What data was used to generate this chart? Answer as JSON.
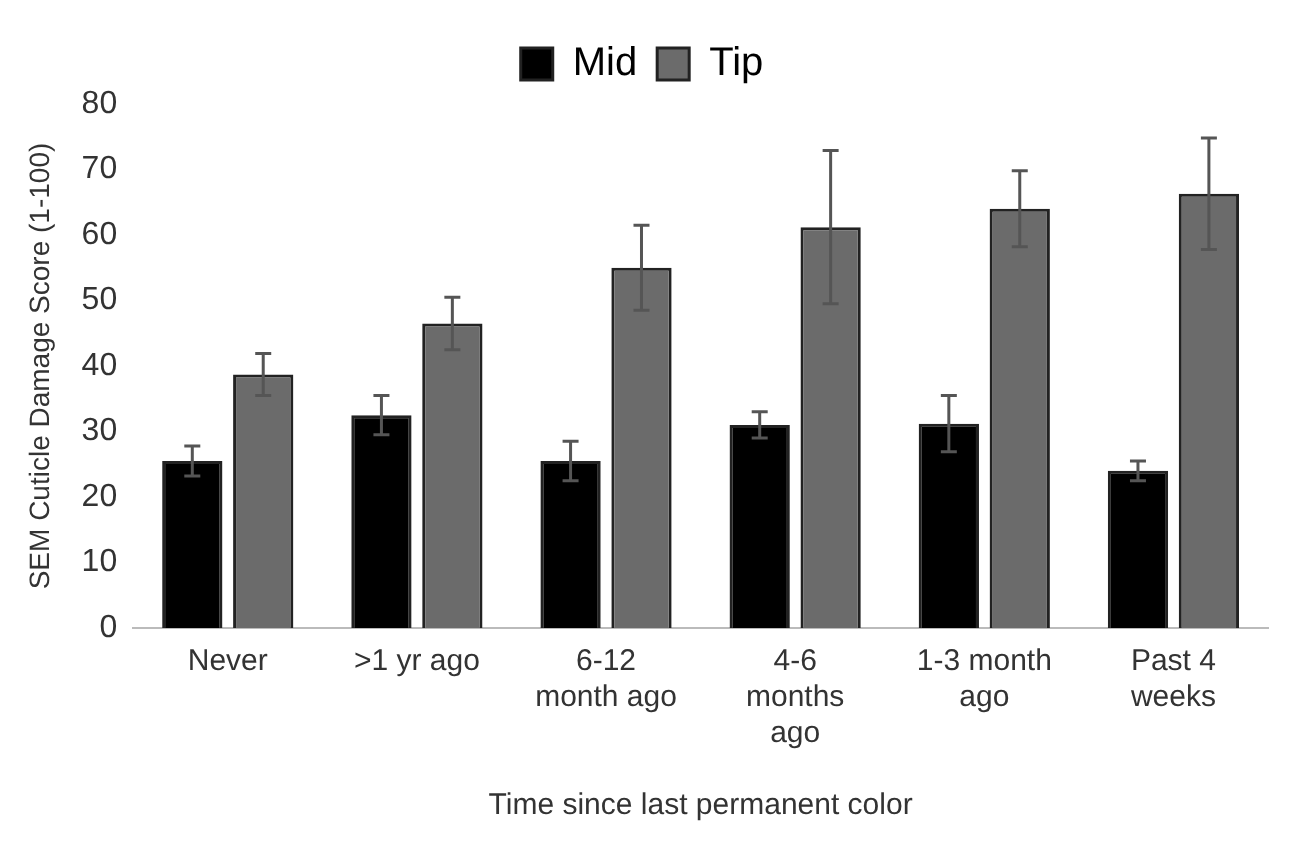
{
  "chart_data": {
    "type": "bar",
    "xlabel": "Time since last permanent color",
    "ylabel": "SEM Cuticle Damage Score (1-100)",
    "categories": [
      "Never",
      ">1 yr ago",
      "6-12 month ago",
      "4-6 months ago",
      "1-3 month ago",
      "Past 4 weeks"
    ],
    "series": [
      {
        "name": "Mid",
        "color": "#000000",
        "values": [
          25.5,
          32.5,
          25.5,
          31,
          31.2,
          24
        ],
        "errors": [
          2.3,
          3,
          3,
          2,
          4.3,
          1.5
        ]
      },
      {
        "name": "Tip",
        "color": "#6b6b6b",
        "values": [
          38.7,
          46.5,
          55,
          61.2,
          64,
          66.3
        ],
        "errors": [
          3.2,
          4,
          6.5,
          11.7,
          5.8,
          8.5
        ]
      }
    ],
    "ylim": [
      0,
      80
    ],
    "yticks": [
      0,
      10,
      20,
      30,
      40,
      50,
      60,
      70,
      80
    ],
    "grid": false,
    "legend": "top"
  }
}
